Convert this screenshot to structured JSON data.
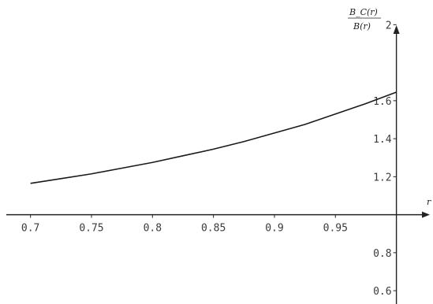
{
  "chart_data": {
    "type": "line",
    "title": "",
    "xlabel": "r",
    "ylabel_numerator": "B_C(r)",
    "ylabel_denominator": "B(r)",
    "xlim": [
      0.675,
      1.03
    ],
    "ylim": [
      0.53,
      2.13
    ],
    "x_ticks": [
      {
        "value": 0.7,
        "label": "0.7"
      },
      {
        "value": 0.75,
        "label": "0.75"
      },
      {
        "value": 0.8,
        "label": "0.8"
      },
      {
        "value": 0.85,
        "label": "0.85"
      },
      {
        "value": 0.9,
        "label": "0.9"
      },
      {
        "value": 0.95,
        "label": "0.95"
      }
    ],
    "y_ticks": [
      {
        "value": 0.6,
        "label": "0.6"
      },
      {
        "value": 0.8,
        "label": "0.8"
      },
      {
        "value": 1.2,
        "label": "1.2"
      },
      {
        "value": 1.4,
        "label": "1.4"
      },
      {
        "value": 1.6,
        "label": "1.6"
      },
      {
        "value": 2.0,
        "label": "2"
      }
    ],
    "series": [
      {
        "x": [
          0.7,
          0.725,
          0.75,
          0.775,
          0.8,
          0.825,
          0.85,
          0.875,
          0.9,
          0.925,
          0.95,
          0.975,
          1.0
        ],
        "y": [
          1.165,
          1.19,
          1.215,
          1.245,
          1.275,
          1.31,
          1.345,
          1.385,
          1.43,
          1.475,
          1.53,
          1.585,
          1.645
        ]
      }
    ],
    "grid": false,
    "legend": "none"
  }
}
